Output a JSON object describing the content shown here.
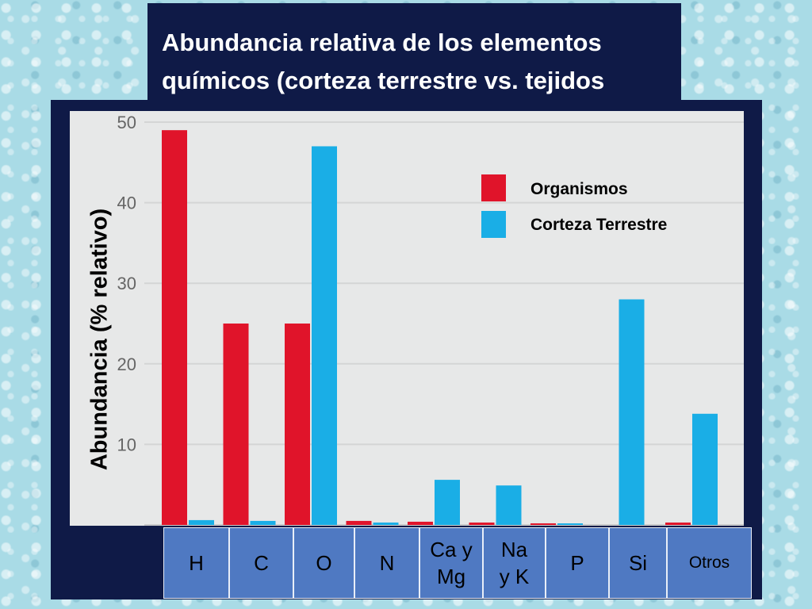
{
  "title": "Abundancia relativa de los elementos químicos (corteza terrestre vs. tejidos",
  "colors": {
    "organismos": "#e0142a",
    "corteza": "#1aaee6",
    "plot_bg": "#e7e8e8",
    "frame": "#0f1a47",
    "table": "#4f79c2"
  },
  "chart_data": {
    "type": "bar",
    "categories": [
      "H",
      "C",
      "O",
      "N",
      "Ca y Mg",
      "Na y K",
      "P",
      "Si",
      "Otros"
    ],
    "series": [
      {
        "name": "Organismos",
        "values": [
          49,
          25,
          25,
          0.5,
          0.4,
          0.3,
          0.2,
          0,
          0.3
        ]
      },
      {
        "name": "Corteza Terrestre",
        "values": [
          0.6,
          0.5,
          47,
          0.3,
          5.6,
          4.9,
          0.1,
          28,
          13.8
        ]
      }
    ],
    "ylabel": "Abundancia (% relativo)",
    "ylim": [
      0,
      50
    ],
    "yticks": [
      "50",
      "40",
      "30",
      "20",
      "10"
    ],
    "grid": true,
    "legend_position": "top-right"
  },
  "x_labels": [
    "H",
    "C",
    "O",
    "N",
    "Ca y\nMg",
    "Na\ny K",
    "P",
    "Si",
    "Otros"
  ]
}
